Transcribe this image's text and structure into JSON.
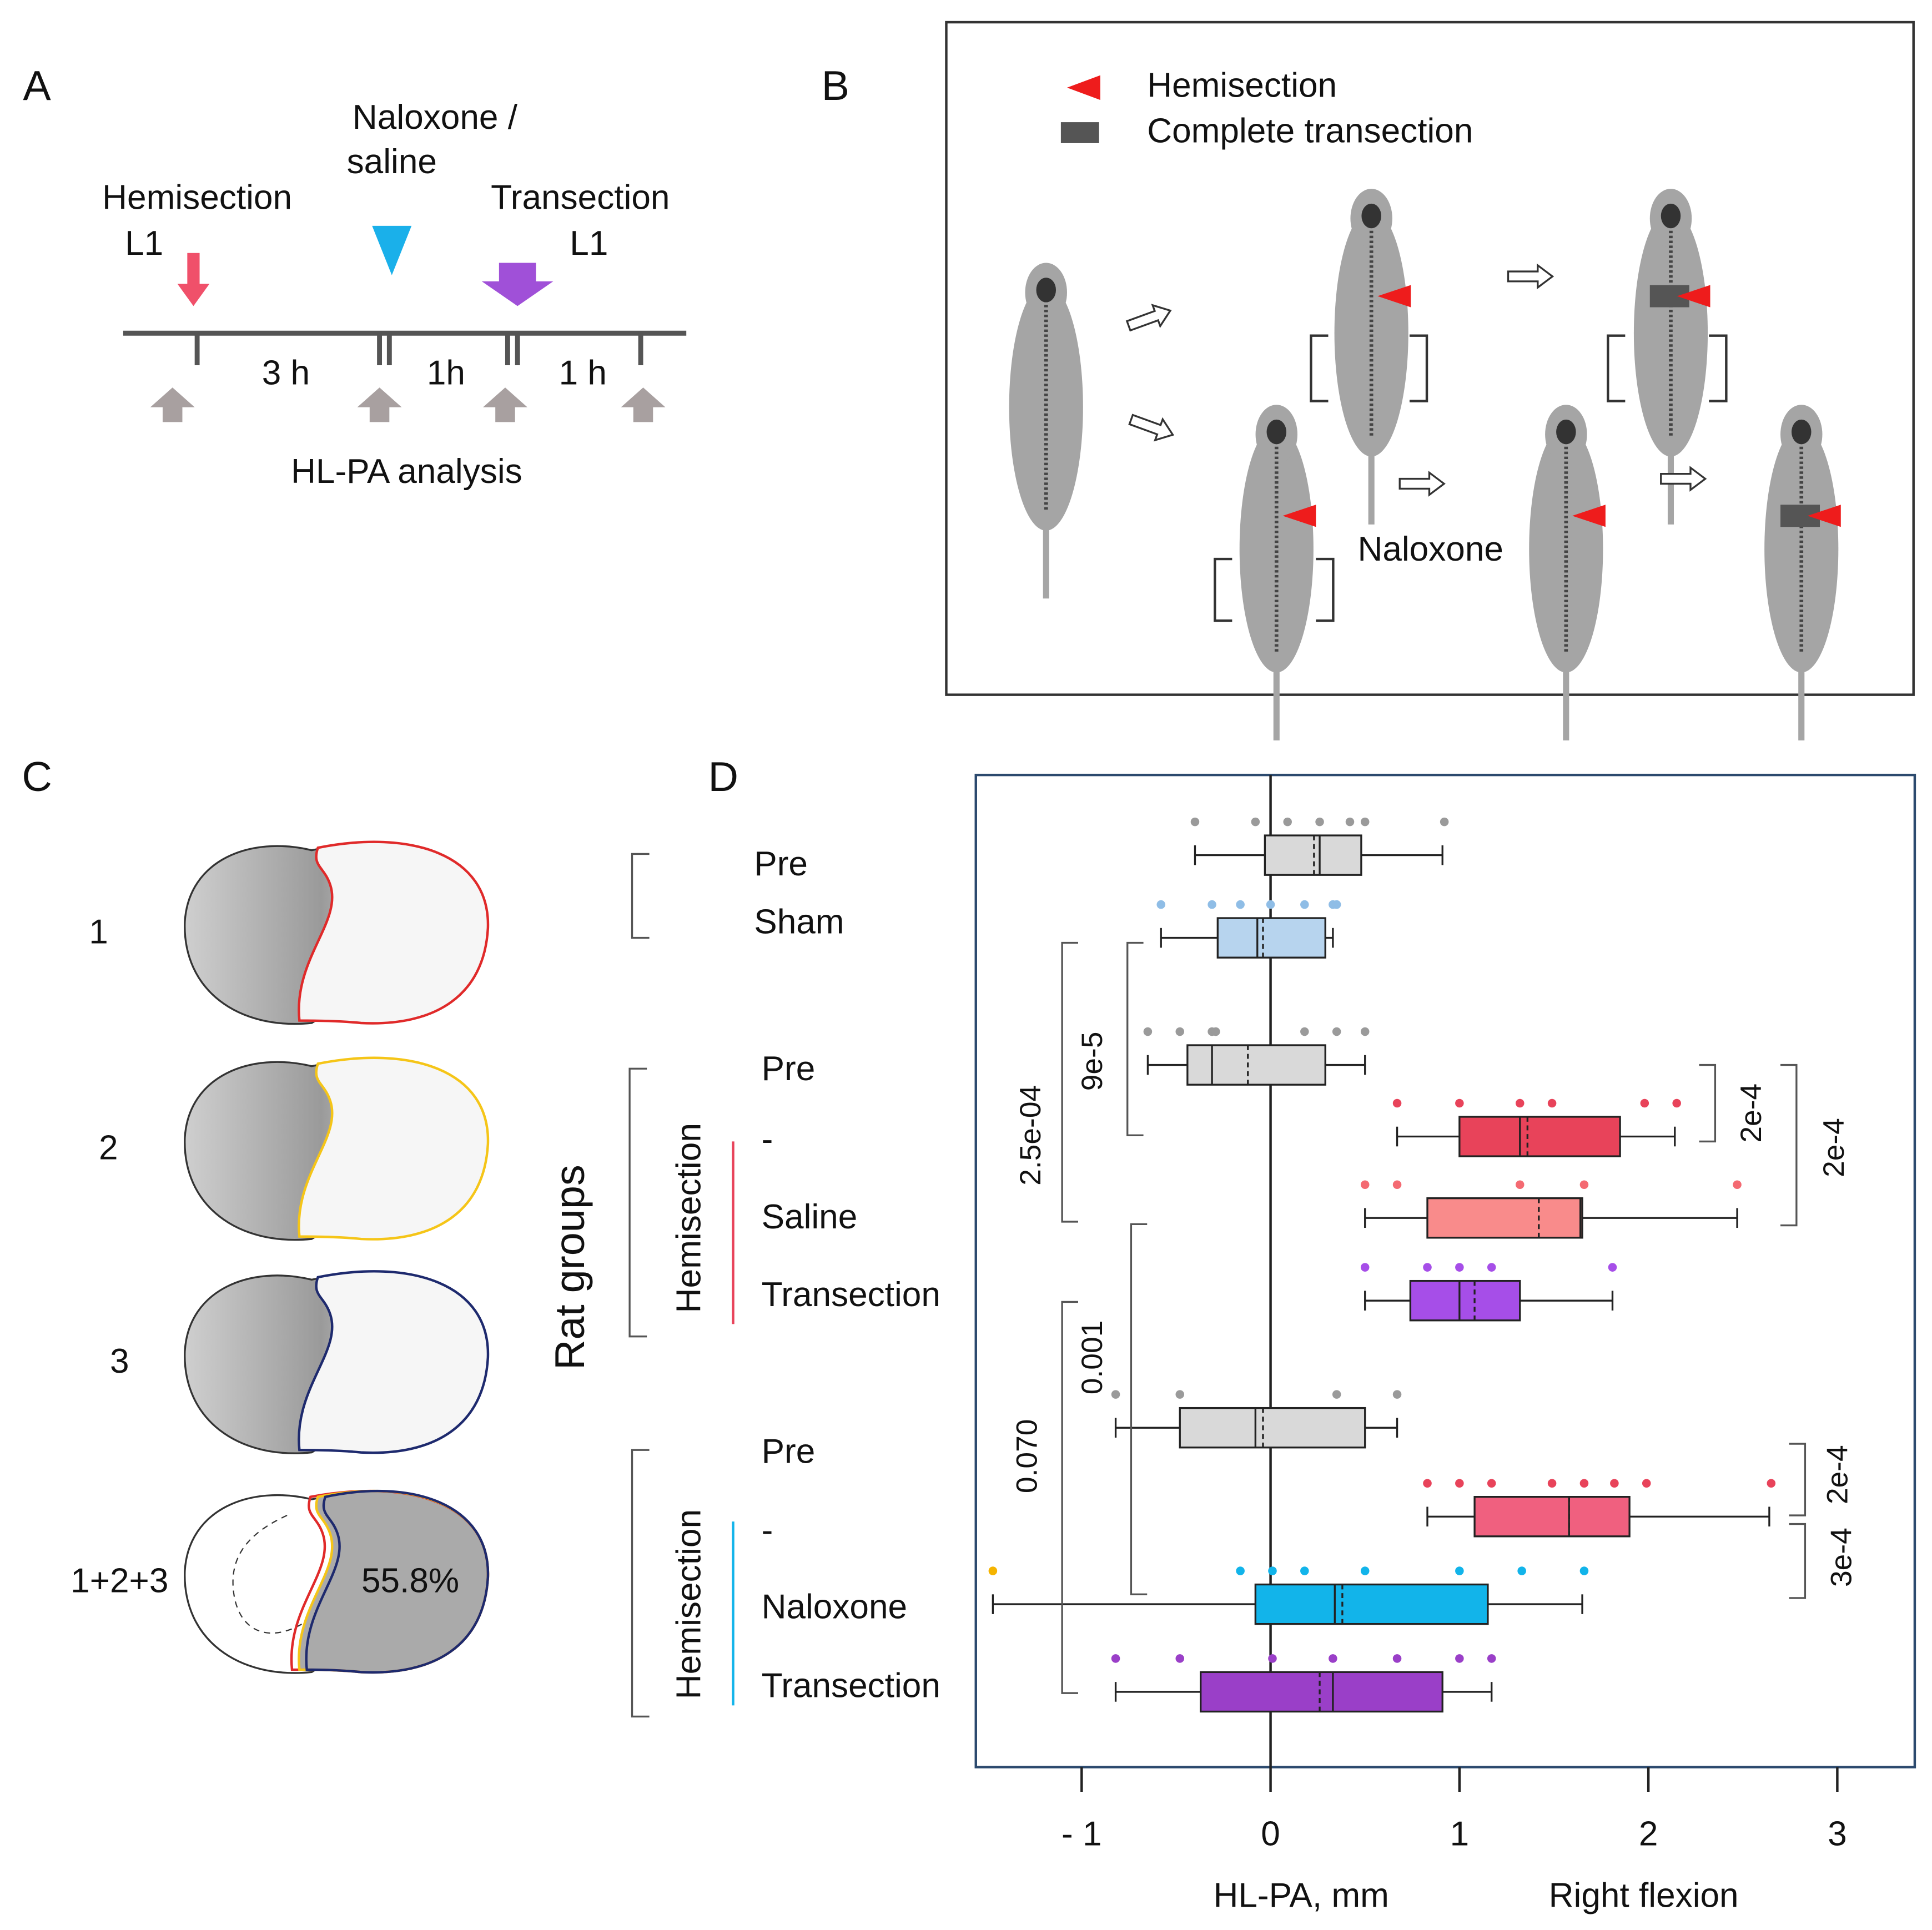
{
  "panel_labels": [
    "A",
    "B",
    "C",
    "D"
  ],
  "timeline": {
    "events": [
      {
        "lines": [
          "Hemisection",
          "L1"
        ],
        "color": "#f0506a"
      },
      {
        "lines": [
          "Naloxone /",
          "saline"
        ],
        "color": "#1ab0ea"
      },
      {
        "lines": [
          "Transection",
          "L1"
        ],
        "color": "#a050d8"
      }
    ],
    "intervals": [
      "3 h",
      "1h",
      "1 h"
    ],
    "analysis": "HL-PA analysis"
  },
  "schematic": {
    "legend": [
      "Hemisection",
      "Complete transection"
    ],
    "treatment": "Naloxone"
  },
  "sections": {
    "rows": [
      "1",
      "2",
      "3",
      "1+2+3"
    ],
    "colors": [
      "#e02a2a",
      "#f5c518",
      "#1e2a6e"
    ],
    "overlap": "55.8%"
  },
  "chart_data": {
    "type": "box",
    "ylabel": "Rat groups",
    "xlabel": "HL-PA, mm",
    "xlabel_right": "Right flexion",
    "categories": [
      "Pre",
      "Sham",
      "Pre",
      "-",
      "Saline",
      "Transection",
      "Pre",
      "-",
      "Naloxone",
      "Transection"
    ],
    "groups": [
      {
        "name": "Hemisection",
        "color": "#e8435a"
      },
      {
        "name": "Hemisection",
        "color": "#12b4ea"
      }
    ],
    "boxes": [
      {
        "min": -0.4,
        "q1": -0.03,
        "median": 0.26,
        "mean": 0.23,
        "q3": 0.48,
        "max": 0.91,
        "color": "#d9d9d9",
        "point_color": "#9a9a9a",
        "points": [
          -0.4,
          -0.08,
          0.09,
          0.26,
          0.42,
          0.5,
          0.92
        ]
      },
      {
        "min": -0.58,
        "q1": -0.28,
        "median": -0.07,
        "mean": -0.04,
        "q3": 0.29,
        "max": 0.33,
        "color": "#b7d4ee",
        "point_color": "#8fbde6",
        "points": [
          -0.58,
          -0.31,
          -0.16,
          0.0,
          0.18,
          0.33,
          0.35
        ]
      },
      {
        "min": -0.65,
        "q1": -0.44,
        "median": -0.31,
        "mean": -0.12,
        "q3": 0.29,
        "max": 0.5,
        "color": "#d9d9d9",
        "point_color": "#9a9a9a",
        "points": [
          -0.65,
          -0.48,
          -0.31,
          -0.29,
          0.18,
          0.35,
          0.5
        ]
      },
      {
        "min": 0.67,
        "q1": 1.0,
        "median": 1.32,
        "mean": 1.36,
        "q3": 1.85,
        "max": 2.14,
        "color": "#e8435a",
        "point_color": "#e8435a",
        "points": [
          0.67,
          1.0,
          1.32,
          1.49,
          1.98,
          2.15
        ]
      },
      {
        "min": 0.5,
        "q1": 0.83,
        "median": 1.64,
        "mean": 1.42,
        "q3": 1.65,
        "max": 2.47,
        "color": "#f98b8b",
        "point_color": "#f46a72",
        "points": [
          0.5,
          0.67,
          1.32,
          1.66,
          2.47
        ]
      },
      {
        "min": 0.5,
        "q1": 0.74,
        "median": 1.0,
        "mean": 1.08,
        "q3": 1.32,
        "max": 1.81,
        "color": "#a64ee8",
        "point_color": "#a64ee8",
        "points": [
          0.5,
          0.83,
          1.0,
          1.17,
          1.81
        ]
      },
      {
        "min": -0.82,
        "q1": -0.48,
        "median": -0.08,
        "mean": -0.04,
        "q3": 0.5,
        "max": 0.67,
        "color": "#d9d9d9",
        "point_color": "#9a9a9a",
        "points": [
          -0.82,
          -0.48,
          0.35,
          0.67
        ]
      },
      {
        "min": 0.83,
        "q1": 1.08,
        "median": 1.58,
        "mean": 1.58,
        "q3": 1.9,
        "max": 2.64,
        "color": "#f0607f",
        "point_color": "#e8435a",
        "points": [
          0.83,
          1.0,
          1.17,
          1.49,
          1.66,
          1.82,
          1.99,
          2.65
        ]
      },
      {
        "min": -1.47,
        "q1": -0.08,
        "median": 0.34,
        "mean": 0.38,
        "q3": 1.15,
        "max": 1.65,
        "color": "#12b4ea",
        "point_color": "#12b4ea",
        "points": [
          -0.16,
          0.01,
          0.18,
          0.5,
          1.0,
          1.33,
          1.66
        ],
        "outliers": [
          -1.47
        ],
        "outlier_color": "#f5b400"
      },
      {
        "min": -0.82,
        "q1": -0.37,
        "median": 0.33,
        "mean": 0.26,
        "q3": 0.91,
        "max": 1.17,
        "color": "#9a3fc8",
        "point_color": "#9a3fc8",
        "points": [
          -0.82,
          -0.48,
          0.01,
          0.33,
          0.67,
          1.0,
          1.17
        ]
      }
    ],
    "annotations": [
      "2.5e-04",
      "9e-5",
      "2e-4",
      "2e-4",
      "0.001",
      "0.070",
      "2e-4",
      "3e-4"
    ],
    "xlim": [
      -1.56,
      3.41
    ],
    "xticks": [
      {
        "value": -1,
        "label": "- 1"
      },
      0,
      1,
      2,
      3
    ]
  }
}
